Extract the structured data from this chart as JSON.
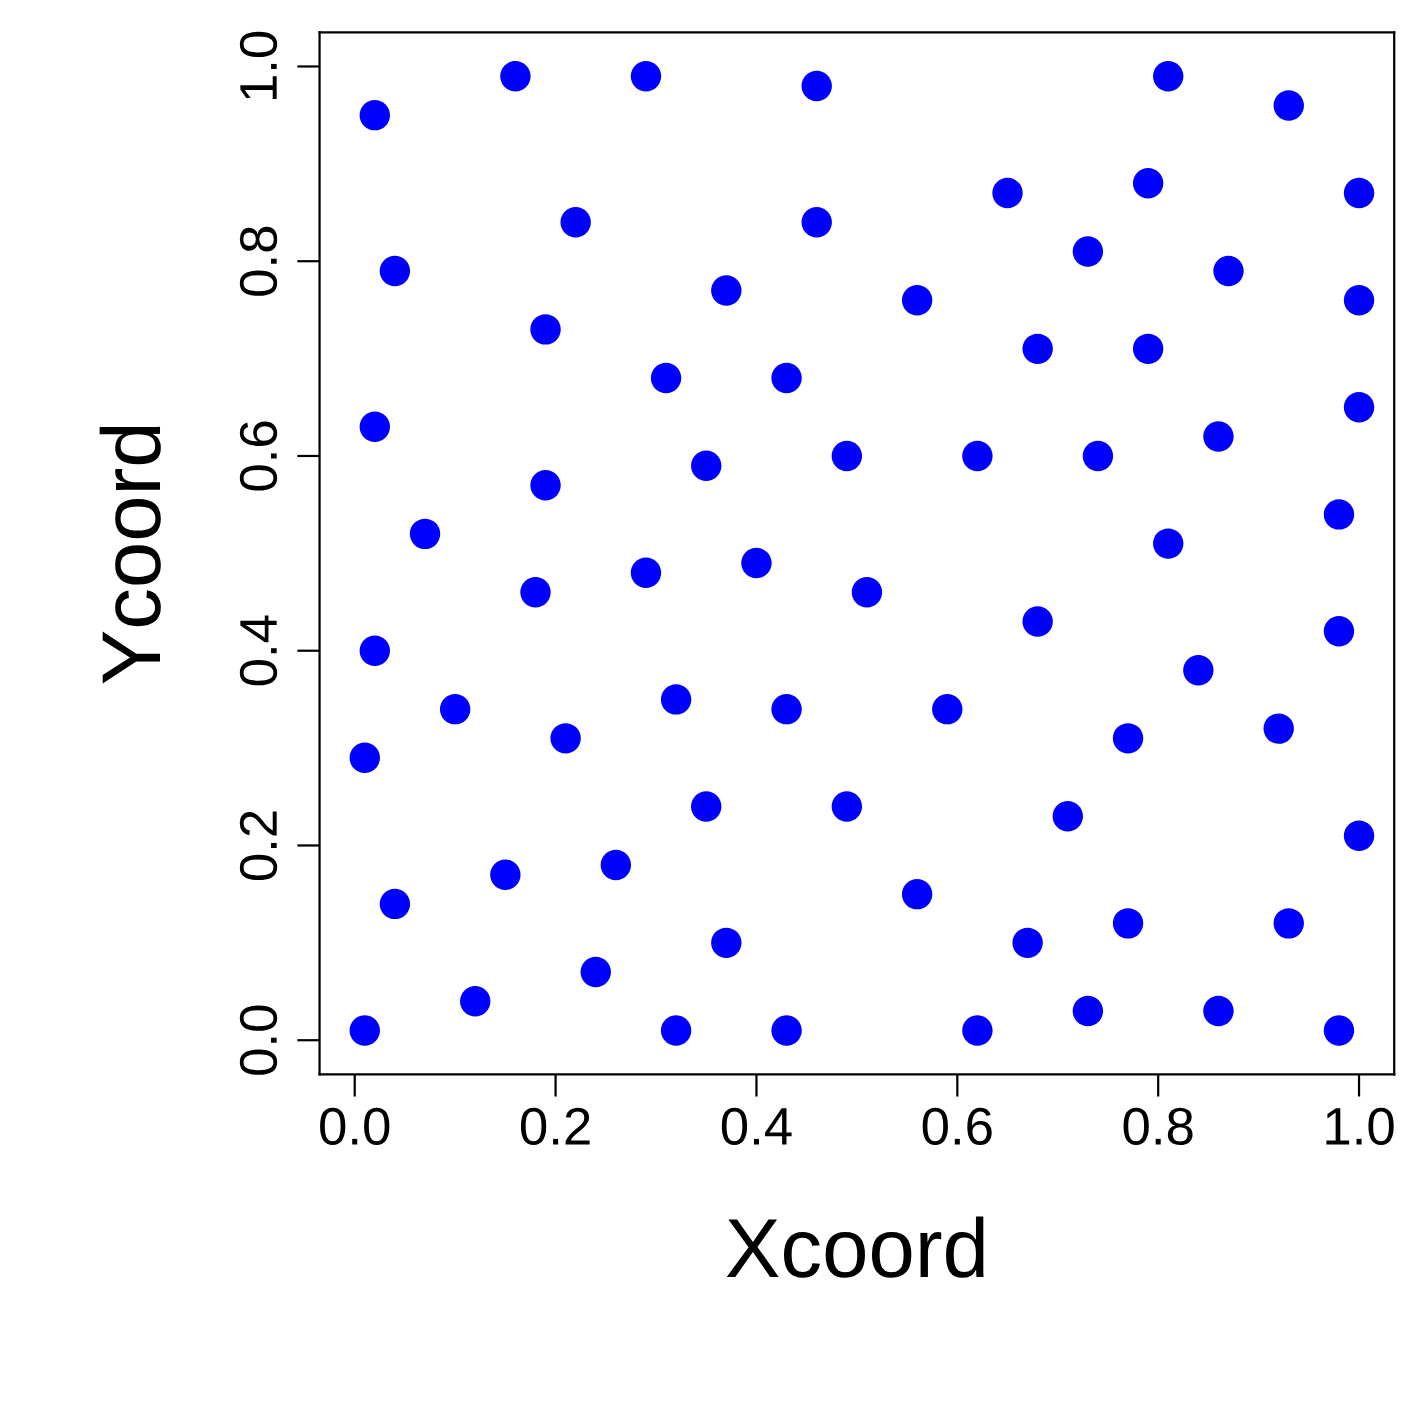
{
  "chart_data": {
    "type": "scatter",
    "xlabel": "Xcoord",
    "ylabel": "Ycoord",
    "xlim": [
      -0.035,
      1.035
    ],
    "ylim": [
      -0.035,
      1.035
    ],
    "xticks": [
      {
        "value": 0,
        "label": "0.0"
      },
      0.2,
      0.4,
      0.6,
      0.8,
      {
        "value": 1,
        "label": "1.0"
      }
    ],
    "yticks": [
      {
        "value": 0,
        "label": "0.0"
      },
      0.2,
      0.4,
      0.6,
      0.8,
      {
        "value": 1,
        "label": "1.0"
      }
    ],
    "grid": false,
    "marker": "circle",
    "series": [
      {
        "color": "#0000ff",
        "x": [
          0.01,
          0.02,
          0.16,
          0.29,
          0.46,
          0.81,
          0.93,
          0.04,
          0.22,
          0.46,
          0.65,
          0.79,
          1.0,
          0.37,
          0.73,
          0.87,
          0.19,
          0.56,
          1.0,
          0.31,
          0.43,
          0.68,
          0.79,
          0.02,
          1.0,
          0.86,
          0.19,
          0.35,
          0.49,
          0.62,
          0.74,
          0.07,
          0.98,
          0.81,
          0.18,
          0.29,
          0.4,
          0.51,
          0.02,
          0.68,
          0.98,
          0.84,
          0.1,
          0.32,
          0.43,
          0.59,
          0.92,
          0.21,
          0.77,
          0.01,
          0.35,
          0.49,
          0.71,
          1.0,
          0.15,
          0.26,
          0.56,
          0.04,
          0.37,
          0.67,
          0.77,
          0.93,
          0.24,
          0.12,
          0.32,
          0.43,
          0.62,
          0.73,
          0.86,
          0.98
        ],
        "values": [
          0.01,
          0.95,
          0.99,
          0.99,
          0.98,
          0.99,
          0.96,
          0.79,
          0.84,
          0.84,
          0.87,
          0.88,
          0.87,
          0.77,
          0.81,
          0.79,
          0.73,
          0.76,
          0.76,
          0.68,
          0.68,
          0.71,
          0.71,
          0.63,
          0.65,
          0.62,
          0.57,
          0.59,
          0.6,
          0.6,
          0.6,
          0.52,
          0.54,
          0.51,
          0.46,
          0.48,
          0.49,
          0.46,
          0.4,
          0.43,
          0.42,
          0.38,
          0.34,
          0.35,
          0.34,
          0.34,
          0.32,
          0.31,
          0.31,
          0.29,
          0.24,
          0.24,
          0.23,
          0.21,
          0.17,
          0.18,
          0.15,
          0.14,
          0.1,
          0.1,
          0.12,
          0.12,
          0.07,
          0.04,
          0.01,
          0.01,
          0.01,
          0.03,
          0.03,
          0.01
        ]
      }
    ]
  }
}
